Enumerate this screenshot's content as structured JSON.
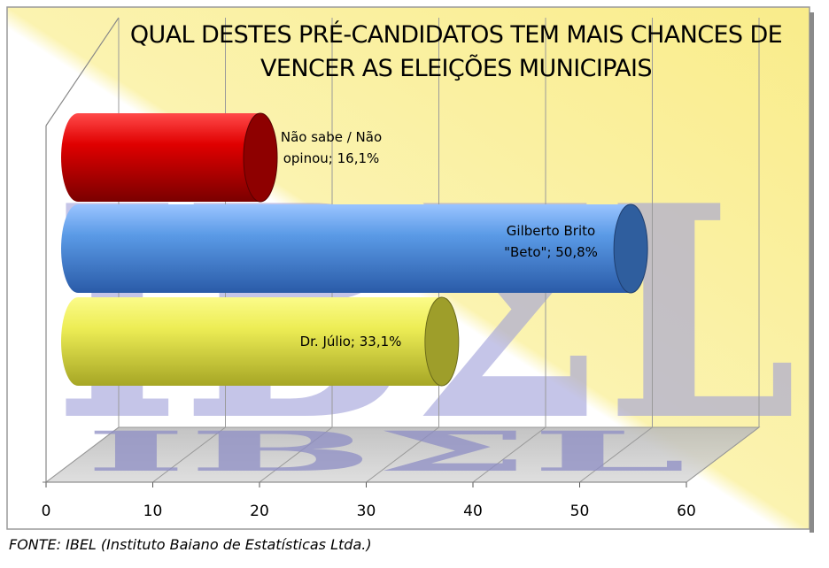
{
  "chart_data": {
    "type": "bar",
    "orientation": "horizontal",
    "title": "QUAL DESTES PRÉ-CANDIDATOS TEM MAIS CHANCES DE VENCER AS ELEIÇÕES MUNICIPAIS",
    "title_lines": [
      "QUAL DESTES PRÉ-CANDIDATOS TEM MAIS CHANCES DE",
      "VENCER AS ELEIÇÕES MUNICIPAIS"
    ],
    "categories": [
      "Não sabe / Não opinou",
      "Gilberto Brito \"Beto\"",
      "Dr. Júlio"
    ],
    "values": [
      16.1,
      50.8,
      33.1
    ],
    "data_labels": [
      [
        "Não sabe / Não",
        "opinou; 16,1%"
      ],
      [
        "Gilberto Brito",
        "\"Beto\"; 50,8%"
      ],
      [
        "Dr. Júlio; 33,1%"
      ]
    ],
    "colors": [
      "#cc0000",
      "#4f8fe0",
      "#e6e650"
    ],
    "xlim": [
      0,
      60
    ],
    "xticks": [
      "0",
      "10",
      "20",
      "30",
      "40",
      "50",
      "60"
    ],
    "grid": true,
    "legend": "none",
    "style": "3d-cylinder"
  },
  "watermark": "IBΣL",
  "footer": "FONTE: IBEL (Instituto Baiano de Estatísticas Ltda.)"
}
